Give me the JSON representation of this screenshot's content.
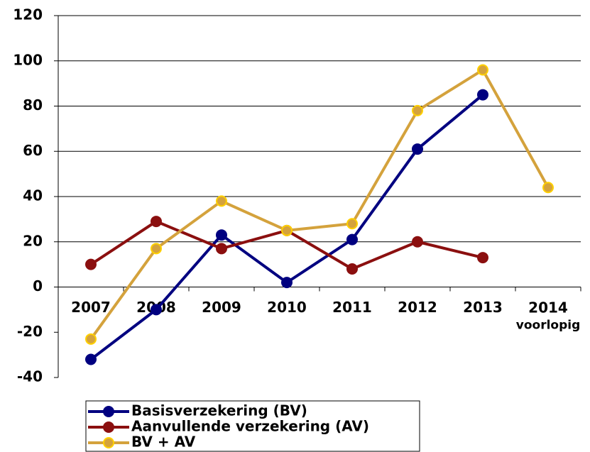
{
  "chart_data": {
    "type": "line",
    "categories": [
      "2007",
      "2008",
      "2009",
      "2010",
      "2011",
      "2012",
      "2013",
      "2014\nvoorlopig"
    ],
    "series": [
      {
        "name": "Basisverzekering (BV)",
        "color": "#000080",
        "values": [
          -32,
          -10,
          23,
          2,
          21,
          61,
          85,
          null
        ]
      },
      {
        "name": "Aanvullende verzekering (AV)",
        "color": "#8b0f0f",
        "values": [
          10,
          29,
          17,
          25,
          8,
          20,
          13,
          null
        ]
      },
      {
        "name": "BV + AV",
        "color": "#d4a23c",
        "values": [
          -23,
          17,
          38,
          25,
          28,
          78,
          96,
          44
        ]
      }
    ],
    "ylim": [
      -40,
      120
    ],
    "yticks": [
      -40,
      -20,
      0,
      20,
      40,
      60,
      80,
      100,
      120
    ],
    "grid": true
  }
}
